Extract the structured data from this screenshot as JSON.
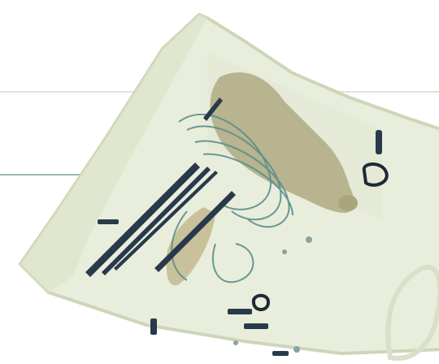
{
  "image": {
    "kind": "x-ray baggage scan",
    "background": "#ffffff",
    "colors": {
      "bag_fill": "#e9eddc",
      "bag_edge": "#cdd6b8",
      "dense_object": "#b7b48f",
      "organic": "#a9a57c",
      "wire": "#5a8f8c",
      "metal": "#283a4a",
      "scanline": "#6fa483"
    },
    "objects": [
      {
        "name": "bag",
        "material": "fabric"
      },
      {
        "name": "water-bottle",
        "material": "organic"
      },
      {
        "name": "cables",
        "material": "wire"
      },
      {
        "name": "pens-and-tools",
        "material": "metal"
      },
      {
        "name": "zipper-pulls",
        "material": "metal"
      },
      {
        "name": "bag-handle",
        "material": "fabric"
      }
    ]
  }
}
